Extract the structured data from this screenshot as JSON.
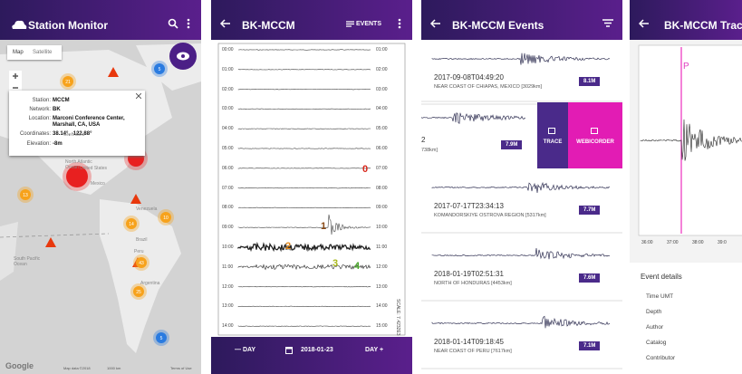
{
  "map_screen": {
    "title": "Station Monitor",
    "tabs": [
      "Map",
      "Satellite"
    ],
    "popup": [
      {
        "label": "Station:",
        "value": "MCCM"
      },
      {
        "label": "Network:",
        "value": "BK"
      },
      {
        "label": "Location:",
        "value": "Marconi Conference Center, Marshall, CA, USA"
      },
      {
        "label": "Coordinates:",
        "value": "38.14°, -122.88°"
      },
      {
        "label": "Elevation:",
        "value": "-8m"
      }
    ],
    "places": [
      "Greenland",
      "North Atlantic Ocean",
      "Mexico",
      "Venezuela",
      "Brazil",
      "Peru",
      "South Pacific Ocean",
      "Argentina",
      "United States"
    ],
    "clusters": [
      "21",
      "5",
      "13",
      "14",
      "10",
      "43",
      "25",
      "5"
    ],
    "footer": {
      "logo": "Google",
      "attribution": "Map data ©2018",
      "scale": "1000 km",
      "terms": "Terms of Use"
    }
  },
  "helicorder_screen": {
    "title": "BK-MCCM",
    "action": "EVENTS",
    "left_times": [
      "00:00",
      "01:00",
      "02:00",
      "03:00",
      "04:00",
      "05:00",
      "06:00",
      "07:00",
      "08:00",
      "09:00",
      "10:00",
      "11:00",
      "12:00",
      "13:00",
      "14:00"
    ],
    "right_times": [
      "01:00",
      "02:00",
      "03:00",
      "04:00",
      "05:00",
      "06:00",
      "07:00",
      "08:00",
      "09:00",
      "10:00",
      "11:00",
      "12:00",
      "13:00",
      "14:00",
      "15:00"
    ],
    "events": [
      "0",
      "1",
      "2",
      "3",
      "4"
    ],
    "scale": "SCALE: 7.4232E3 nm/s",
    "prev": "— DAY",
    "date": "2018-01-23",
    "next": "DAY +"
  },
  "events_screen": {
    "title": "BK-MCCM Events",
    "items": [
      {
        "time": "2017-09-08T04:49:20",
        "region": "NEAR COAST OF CHIAPAS, MEXICO [3029km]",
        "magnitude": "8.1M"
      },
      {
        "time": "2017-07-17T23:34:13",
        "region": "KOMANDORSKIYE OSTROVA REGION [5317km]",
        "magnitude": "7.7M"
      },
      {
        "time": "2018-01-19T02:51:31",
        "region": "NORTH OF HONDURAS [4453km]",
        "magnitude": "7.6M"
      },
      {
        "time": "2018-01-14T09:18:45",
        "region": "NEAR COAST OF PERU [7617km]",
        "magnitude": "7.1M"
      }
    ],
    "swiped": {
      "time": "2",
      "region": "738km]",
      "magnitude": "7.9M",
      "actions": [
        "TRACE",
        "WEBICORDER"
      ]
    }
  },
  "trace_screen": {
    "title": "BK-MCCM Trac",
    "phase": "P",
    "ticks": [
      "36:00",
      "37:00",
      "38:00",
      "39:0"
    ],
    "section": "Event details",
    "fields": [
      "Time UMT",
      "Depth",
      "Author",
      "Catalog",
      "Contributor"
    ]
  }
}
